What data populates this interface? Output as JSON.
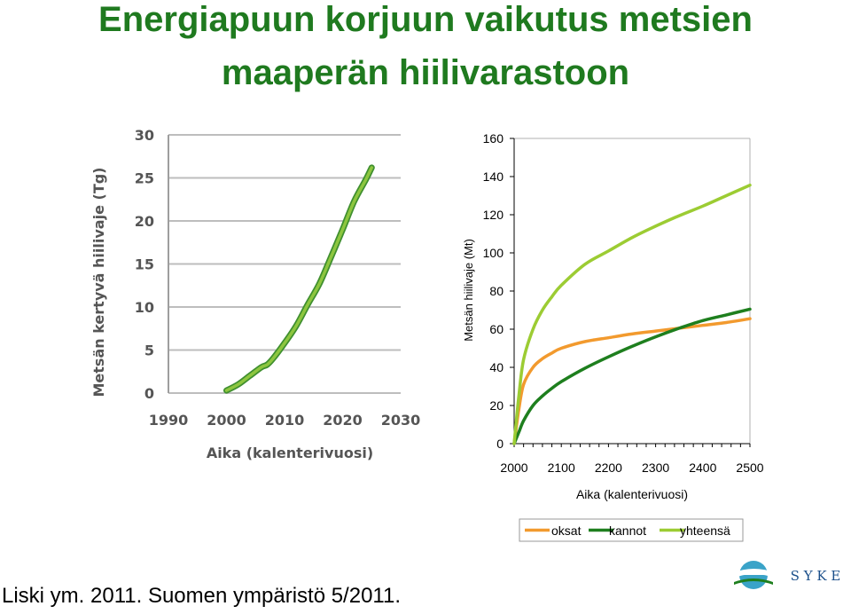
{
  "title_line1": "Energiapuun korjuun vaikutus metsien",
  "title_line2": "maaperän hiilivarastoon",
  "citation": "Liski ym. 2011. Suomen ympäristö 5/2011.",
  "logo_text": "S Y K E",
  "colors": {
    "title": "#1f7a1f",
    "left_line": "#8dc63f",
    "left_line_edge": "#3f8f2f",
    "oksat": "#f29a2e",
    "kannot": "#1e7f1e",
    "yhteensa": "#9ccc33",
    "logo_blue": "#3aa3c8",
    "logo_text": "#1b4f8a"
  },
  "chart_data": [
    {
      "type": "line",
      "xlabel": "Aika (kalenterivuosi)",
      "ylabel": "Metsän kertyvä hiilivaje (Tg)",
      "xlim": [
        1990,
        2030
      ],
      "ylim": [
        0,
        30
      ],
      "xticks": [
        "1990",
        "2000",
        "2010",
        "2020",
        "2030"
      ],
      "yticks": [
        "0",
        "5",
        "10",
        "15",
        "20",
        "25",
        "30"
      ],
      "grid": true,
      "series": [
        {
          "x": [
            2000,
            2002,
            2004,
            2006,
            2007,
            2008,
            2010,
            2012,
            2014,
            2016,
            2018,
            2020,
            2022,
            2024,
            2025
          ],
          "values": [
            0.3,
            1.0,
            2.0,
            3.0,
            3.3,
            4.0,
            5.8,
            7.8,
            10.3,
            12.7,
            15.8,
            19.0,
            22.3,
            24.8,
            26.2
          ]
        }
      ]
    },
    {
      "type": "line",
      "xlabel": "Aika (kalenterivuosi)",
      "ylabel": "Metsän hiilivaje (Mt)",
      "xlim": [
        2000,
        2500
      ],
      "ylim": [
        0,
        160
      ],
      "xticks": [
        "2000",
        "2100",
        "2200",
        "2300",
        "2400",
        "2500"
      ],
      "yticks": [
        "0",
        "20",
        "40",
        "60",
        "80",
        "100",
        "120",
        "140",
        "160"
      ],
      "grid": false,
      "legend": "bottom",
      "series": [
        {
          "name": "oksat",
          "x": [
            2000,
            2010,
            2020,
            2040,
            2060,
            2080,
            2100,
            2150,
            2200,
            2250,
            2300,
            2350,
            2400,
            2450,
            2500
          ],
          "values": [
            0,
            18,
            31,
            40,
            44.5,
            47.5,
            50,
            53.5,
            55.5,
            57.5,
            59,
            60.5,
            62,
            63.5,
            65.5
          ]
        },
        {
          "name": "kannot",
          "x": [
            2000,
            2010,
            2020,
            2040,
            2060,
            2080,
            2100,
            2150,
            2200,
            2250,
            2300,
            2350,
            2400,
            2450,
            2500
          ],
          "values": [
            0,
            6,
            12,
            20,
            25,
            29,
            32.5,
            39.5,
            45.5,
            51,
            56,
            60.5,
            64.5,
            67.5,
            70.5
          ]
        },
        {
          "name": "yhteensä",
          "x": [
            2000,
            2010,
            2020,
            2040,
            2060,
            2080,
            2100,
            2150,
            2200,
            2250,
            2300,
            2350,
            2400,
            2450,
            2500
          ],
          "values": [
            0,
            25,
            44,
            60,
            70,
            77,
            83,
            94,
            101,
            108,
            114,
            119.5,
            124.5,
            130,
            135.5
          ]
        }
      ]
    }
  ]
}
